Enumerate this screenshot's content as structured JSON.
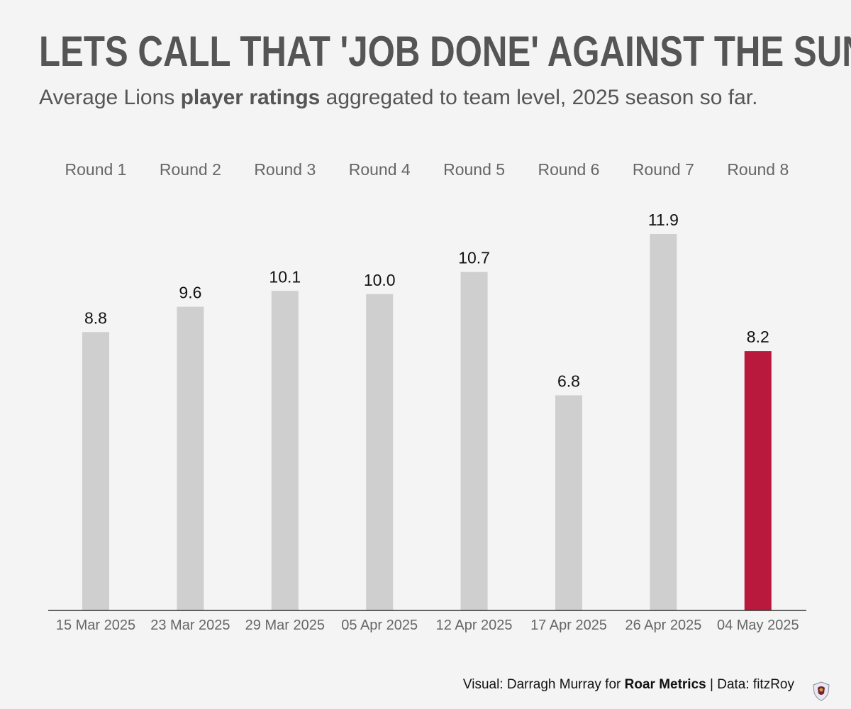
{
  "title": "LETS CALL THAT 'JOB DONE' AGAINST THE SUNS",
  "subtitle": {
    "prefix": "Average Lions ",
    "bold": "player ratings",
    "suffix": " aggregated to team level, 2025 season so far."
  },
  "chart_data": {
    "type": "bar",
    "rounds": [
      "Round 1",
      "Round 2",
      "Round 3",
      "Round 4",
      "Round 5",
      "Round 6",
      "Round 7",
      "Round 8"
    ],
    "categories": [
      "15 Mar 2025",
      "23 Mar 2025",
      "29 Mar 2025",
      "05 Apr 2025",
      "12 Apr 2025",
      "17 Apr 2025",
      "26 Apr 2025",
      "04 May 2025"
    ],
    "values": [
      8.8,
      9.6,
      10.1,
      10.0,
      10.7,
      6.8,
      11.9,
      8.2
    ],
    "value_labels": [
      "8.8",
      "9.6",
      "10.1",
      "10.0",
      "10.7",
      "6.8",
      "11.9",
      "8.2"
    ],
    "highlight_index": 7,
    "colors": {
      "bar": "#cfcfcf",
      "highlight": "#b8193c",
      "axis": "#333333",
      "label": "#111111",
      "category": "#666666"
    },
    "ylim": [
      0,
      11.9
    ],
    "xlabel": "",
    "ylabel": "",
    "grid": false
  },
  "caption": {
    "prefix": "Visual: Darragh Murray for ",
    "bold": "Roar Metrics",
    "suffix": " | Data: fitzRoy"
  },
  "logo_icon": "lions-crest-icon"
}
